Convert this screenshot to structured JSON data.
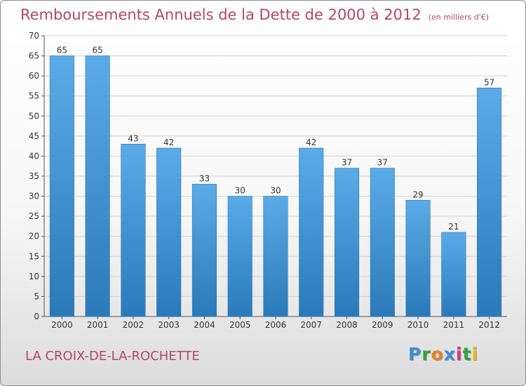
{
  "title": "Remboursements Annuels de la Dette de 2000 à 2012",
  "unit": "(en milliers d'€)",
  "commune": "LA CROIX-DE-LA-ROCHETTE",
  "logo": {
    "letters": [
      "P",
      "r",
      "o",
      "x",
      "i",
      "t",
      "i"
    ],
    "colors": [
      "#3d8fd1",
      "#2aa63a",
      "#f07f1c",
      "#3d8fd1",
      "#d7347f",
      "#2aa63a",
      "#f0b21c"
    ]
  },
  "colors": {
    "title": "#b5456e",
    "bar_top": "#5aabe8",
    "bar_bottom": "#2a7ab9"
  },
  "chart_data": {
    "type": "bar",
    "title": "Remboursements Annuels de la Dette de 2000 à 2012",
    "categories": [
      "2000",
      "2001",
      "2002",
      "2003",
      "2004",
      "2005",
      "2006",
      "2007",
      "2008",
      "2009",
      "2010",
      "2011",
      "2012"
    ],
    "values": [
      65,
      65,
      43,
      42,
      33,
      30,
      30,
      42,
      37,
      37,
      29,
      21,
      57
    ],
    "ylim": [
      0,
      70
    ],
    "yticks": [
      0,
      5,
      10,
      15,
      20,
      25,
      30,
      35,
      40,
      45,
      50,
      55,
      60,
      65,
      70
    ],
    "grid": true,
    "data_labels": true
  }
}
